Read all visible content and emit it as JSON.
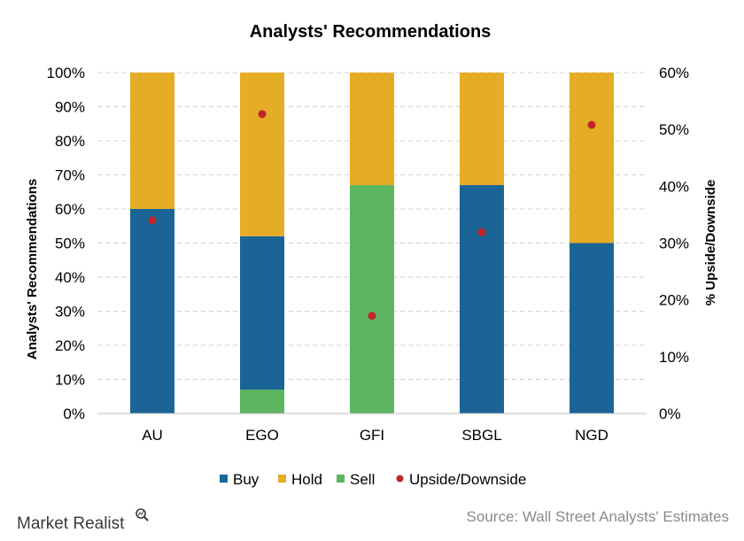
{
  "chart_data": {
    "type": "bar",
    "title": "Analysts'  Recommendations",
    "ylabel": "Analysts' Recommendations",
    "y2label": "% Upside/Downside",
    "categories": [
      "AU",
      "EGO",
      "GFI",
      "SBGL",
      "NGD"
    ],
    "ylim": [
      0,
      100
    ],
    "y2lim": [
      0,
      60
    ],
    "yticks": [
      "0%",
      "10%",
      "20%",
      "30%",
      "40%",
      "50%",
      "60%",
      "70%",
      "80%",
      "90%",
      "100%"
    ],
    "y2ticks": [
      "0%",
      "10%",
      "20%",
      "30%",
      "40%",
      "50%",
      "60%"
    ],
    "series": [
      {
        "name": "Buy",
        "color": "#1a6496",
        "values": [
          60,
          45,
          0,
          67,
          50
        ]
      },
      {
        "name": "Hold",
        "color": "#e5ac26",
        "values": [
          40,
          48,
          33,
          33,
          50
        ]
      },
      {
        "name": "Sell",
        "color": "#5db561",
        "values": [
          0,
          7,
          67,
          0,
          0
        ]
      }
    ],
    "markers": {
      "name": "Upside/Downside",
      "color": "#c0262b",
      "axis": "right",
      "values": [
        34,
        52.7,
        17.2,
        31.9,
        50.8
      ]
    },
    "stack_order": [
      "Sell",
      "Buy",
      "Hold"
    ],
    "grid": true,
    "legend": "bottom"
  },
  "footer": {
    "brand": "Market Realist",
    "source": "Source: Wall Street Analysts' Estimates"
  }
}
